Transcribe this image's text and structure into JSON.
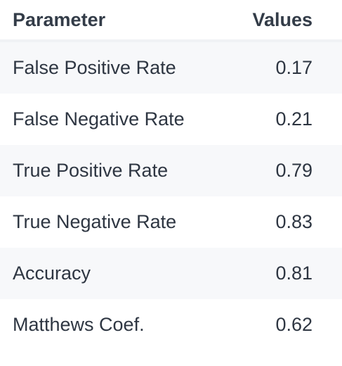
{
  "table": {
    "headers": {
      "parameter": "Parameter",
      "values": "Values"
    },
    "rows": [
      {
        "parameter": "False Positive Rate",
        "value": "0.17"
      },
      {
        "parameter": "False Negative Rate",
        "value": "0.21"
      },
      {
        "parameter": "True Positive Rate",
        "value": "0.79"
      },
      {
        "parameter": "True Negative Rate",
        "value": "0.83"
      },
      {
        "parameter": "Accuracy",
        "value": "0.81"
      },
      {
        "parameter": "Matthews Coef.",
        "value": "0.62"
      }
    ]
  },
  "colors": {
    "header_text": "#333c48",
    "body_text": "#2e3642",
    "stripe": "#f7f8fa",
    "header_border": "#f0f2f5"
  }
}
